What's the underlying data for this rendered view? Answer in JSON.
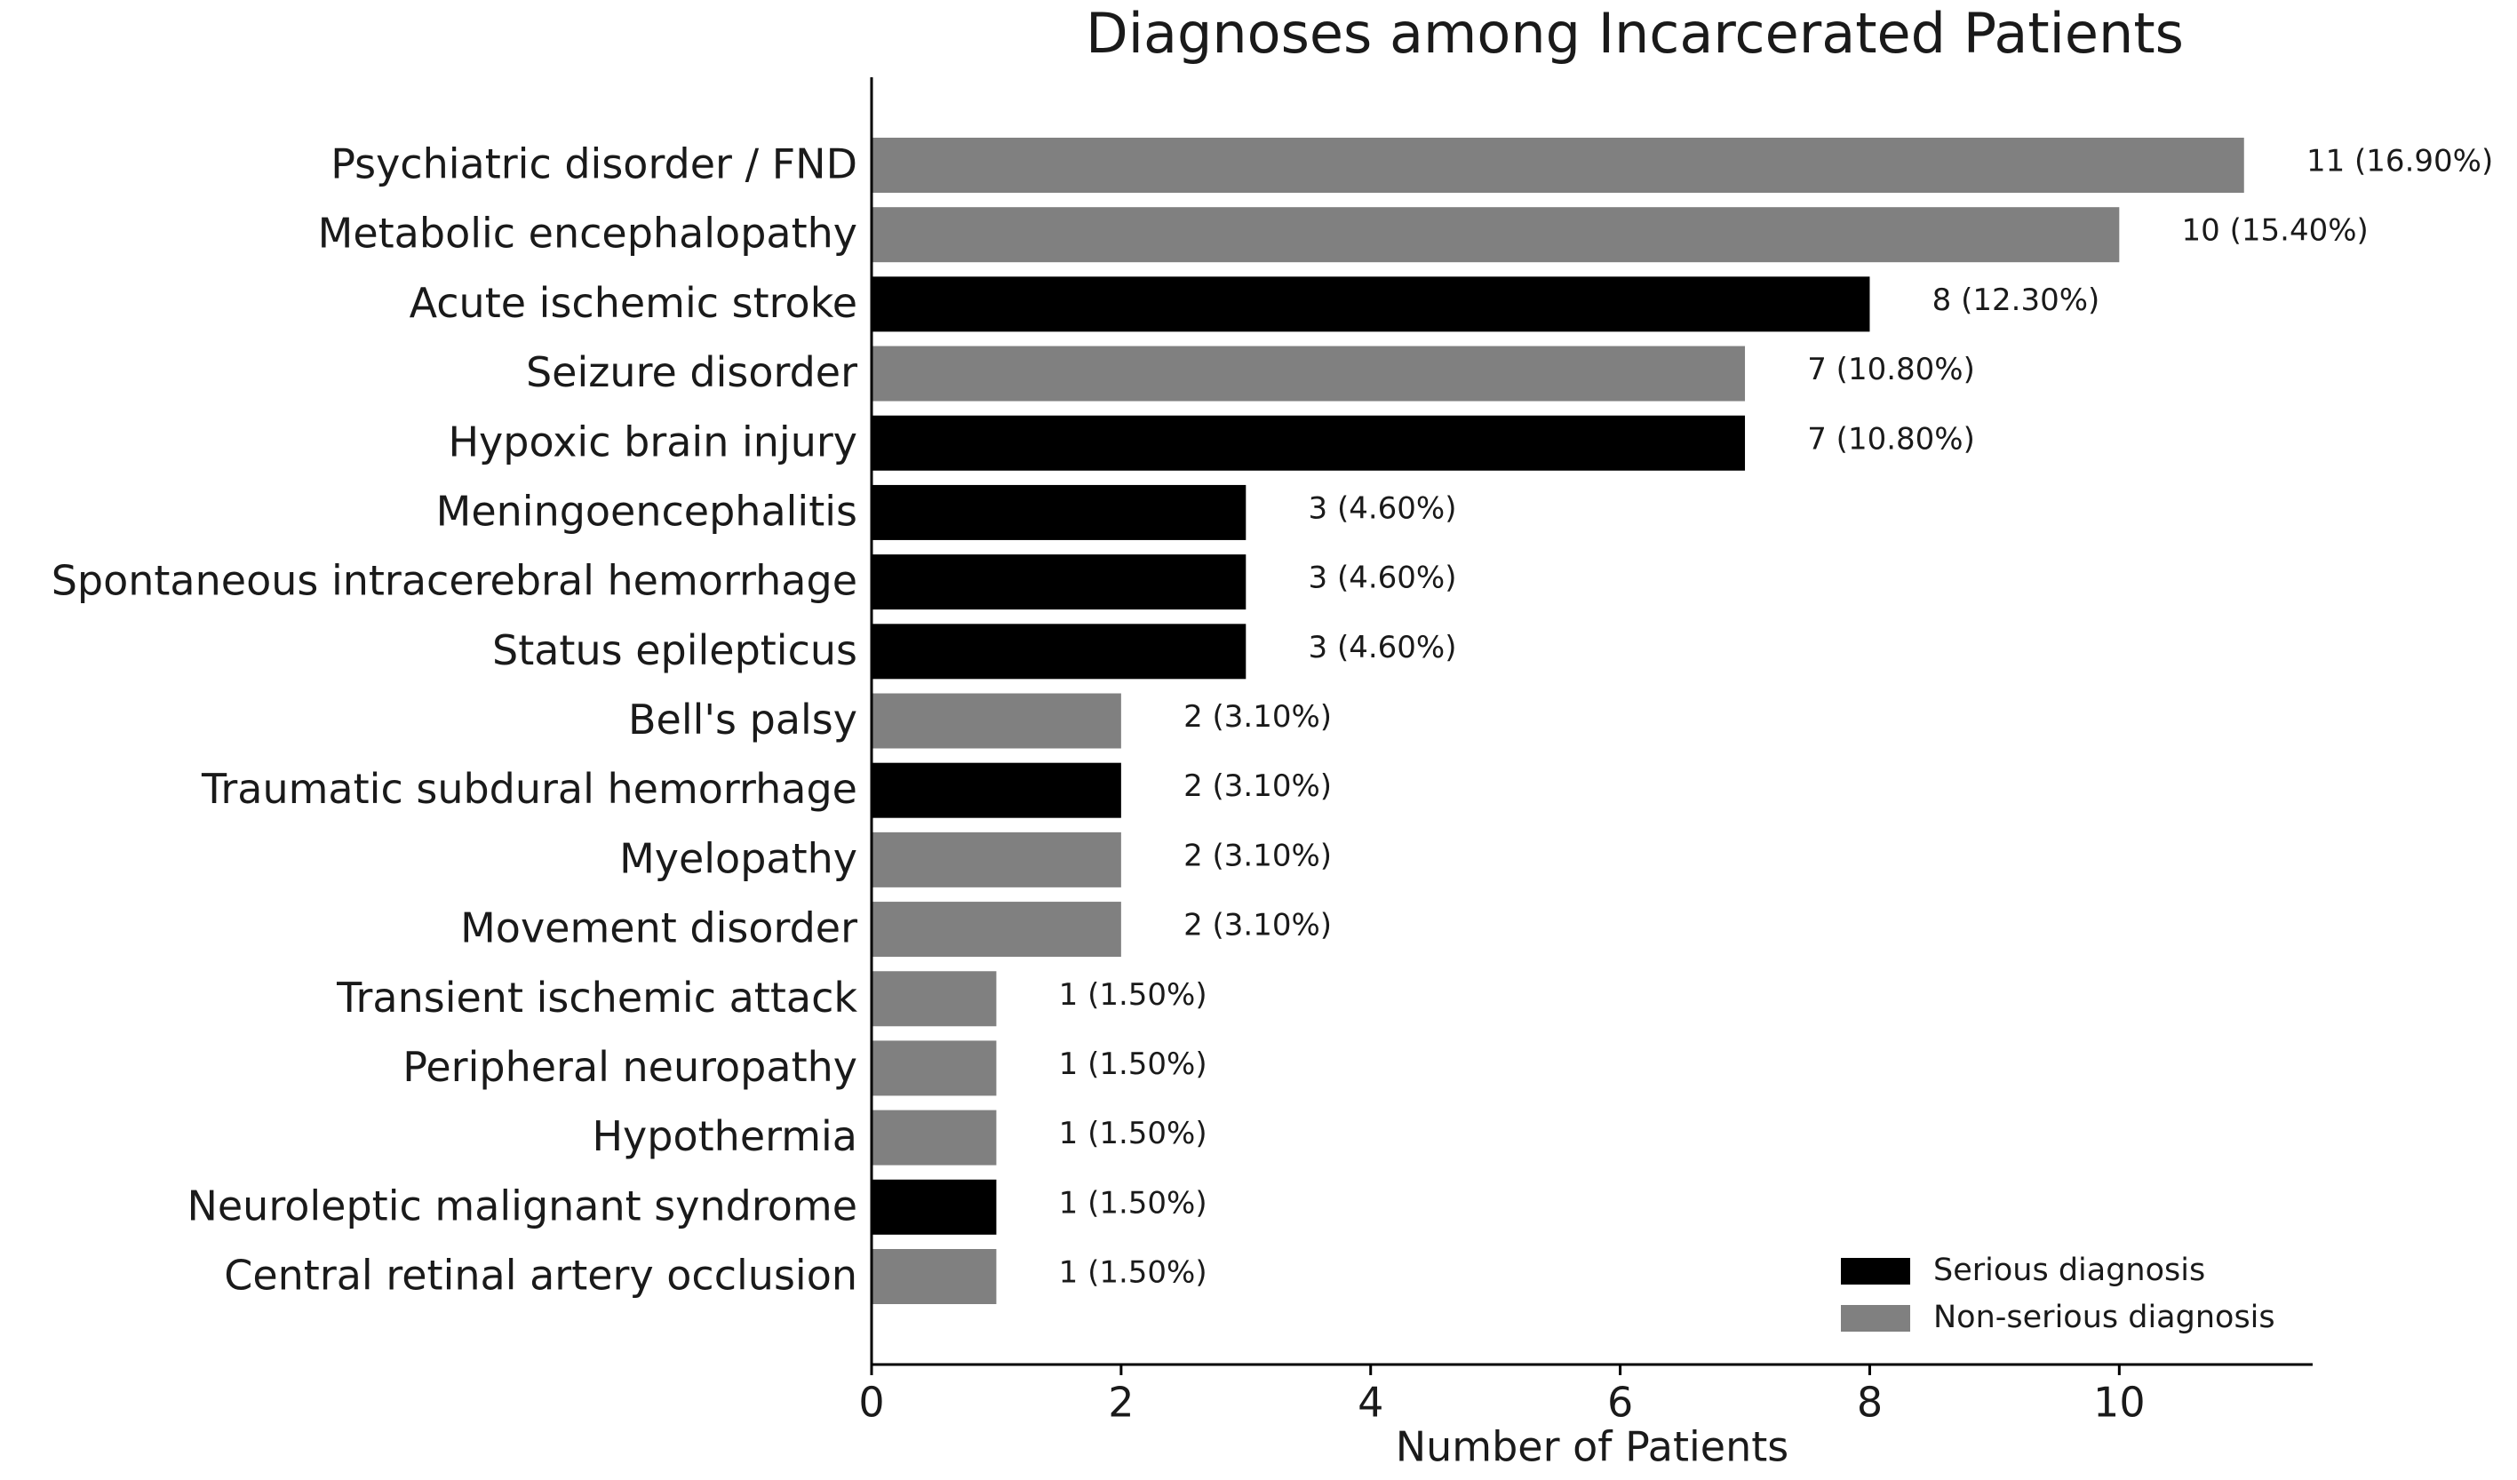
{
  "chart_data": {
    "type": "barh",
    "title": "Diagnoses among Incarcerated Patients",
    "x_label": "Number of Patients",
    "categories": [
      "Psychiatric disorder / FND",
      "Metabolic encephalopathy",
      "Acute ischemic stroke",
      "Seizure disorder",
      "Hypoxic brain injury",
      "Meningoencephalitis",
      "Spontaneous intracerebral hemorrhage",
      "Status epilepticus",
      "Bell's palsy",
      "Traumatic subdural hemorrhage",
      "Myelopathy",
      "Movement disorder",
      "Transient ischemic attack",
      "Peripheral neuropathy",
      "Hypothermia",
      "Neuroleptic malignant syndrome",
      "Central retinal artery occlusion"
    ],
    "series": [
      {
        "name": "Serious diagnosis",
        "color": "#000000",
        "values": [
          null,
          null,
          8,
          null,
          7,
          3,
          3,
          3,
          null,
          2,
          null,
          null,
          null,
          null,
          null,
          1,
          null
        ],
        "value_labels": [
          null,
          null,
          "8 (12.30%)",
          null,
          "7 (10.80%)",
          "3 (4.60%)",
          "3 (4.60%)",
          "3 (4.60%)",
          null,
          "2 (3.10%)",
          null,
          null,
          null,
          null,
          null,
          "1 (1.50%)",
          null
        ]
      },
      {
        "name": "Non-serious diagnosis",
        "color": "#808080",
        "values": [
          11,
          10,
          null,
          7,
          null,
          null,
          null,
          null,
          2,
          null,
          2,
          2,
          1,
          1,
          1,
          null,
          1
        ],
        "value_labels": [
          "11 (16.90%)",
          "10 (15.40%)",
          null,
          "7 (10.80%)",
          null,
          null,
          null,
          null,
          "2 (3.10%)",
          null,
          "2 (3.10%)",
          "2 (3.10%)",
          "1 (1.50%)",
          "1 (1.50%)",
          "1 (1.50%)",
          null,
          "1 (1.50%)"
        ]
      }
    ],
    "xlim": [
      0,
      11.55
    ],
    "xticks": [
      0,
      2,
      4,
      6,
      8,
      10
    ],
    "grid": false,
    "legend": "lower right"
  }
}
